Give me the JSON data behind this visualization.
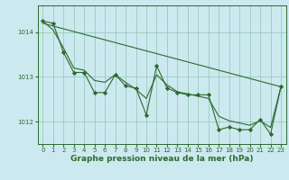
{
  "background_color": "#cce9f0",
  "plot_bg_color": "#cce9f0",
  "grid_color": "#99ccbb",
  "line_color": "#2d6a2d",
  "marker_color": "#2d6a2d",
  "xlabel": "Graphe pression niveau de la mer (hPa)",
  "xlabel_fontsize": 6.5,
  "ylim": [
    1011.5,
    1014.6
  ],
  "xlim": [
    -0.5,
    23.5
  ],
  "yticks": [
    1012,
    1013,
    1014
  ],
  "xticks": [
    0,
    1,
    2,
    3,
    4,
    5,
    6,
    7,
    8,
    9,
    10,
    11,
    12,
    13,
    14,
    15,
    16,
    17,
    18,
    19,
    20,
    21,
    22,
    23
  ],
  "series1_x": [
    0,
    1,
    2,
    3,
    4,
    5,
    6,
    7,
    8,
    9,
    10,
    11,
    12,
    13,
    14,
    15,
    16,
    17,
    18,
    19,
    20,
    21,
    22,
    23
  ],
  "series1_y": [
    1014.25,
    1014.2,
    1013.55,
    1013.1,
    1013.1,
    1012.65,
    1012.65,
    1013.05,
    1012.8,
    1012.75,
    1012.15,
    1013.25,
    1012.75,
    1012.65,
    1012.6,
    1012.6,
    1012.6,
    1011.82,
    1011.88,
    1011.82,
    1011.82,
    1012.05,
    1011.72,
    1012.78
  ],
  "trend_x": [
    0,
    23
  ],
  "trend_y": [
    1014.2,
    1012.78
  ],
  "smooth_x": [
    0,
    1,
    2,
    3,
    4,
    5,
    6,
    7,
    8,
    9,
    10,
    11,
    12,
    13,
    14,
    15,
    16,
    17,
    18,
    19,
    20,
    21,
    22,
    23
  ],
  "smooth_y": [
    1014.25,
    1014.05,
    1013.65,
    1013.2,
    1013.15,
    1012.92,
    1012.88,
    1013.05,
    1012.88,
    1012.72,
    1012.52,
    1013.05,
    1012.82,
    1012.67,
    1012.62,
    1012.57,
    1012.52,
    1012.12,
    1012.02,
    1011.97,
    1011.92,
    1012.02,
    1011.87,
    1012.78
  ],
  "tick_fontsize": 5,
  "tick_color": "#2d6a2d",
  "spine_color": "#2d6a2d"
}
